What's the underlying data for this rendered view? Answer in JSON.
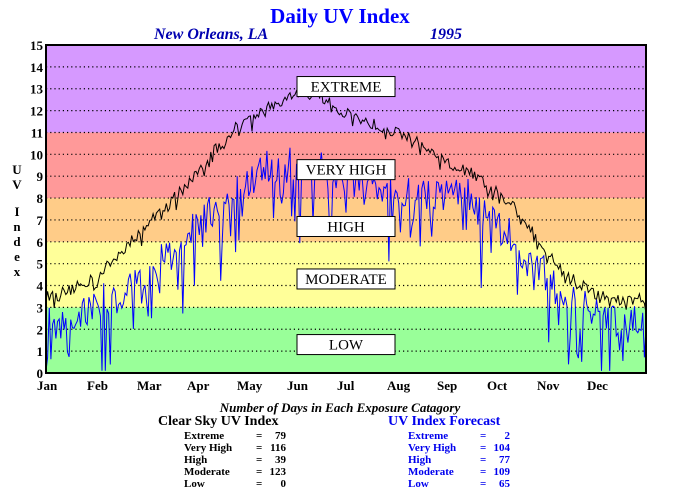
{
  "chart_data": {
    "type": "line",
    "title": "Daily UV Index",
    "location": "New Orleans, LA",
    "year": "1995",
    "ylabel": "UV Index",
    "ylim": [
      0,
      15
    ],
    "yticks": [
      "0",
      "1",
      "2",
      "3",
      "4",
      "5",
      "6",
      "7",
      "8",
      "9",
      "10",
      "11",
      "12",
      "13",
      "14",
      "15"
    ],
    "months": [
      "Jan",
      "Feb",
      "Mar",
      "Apr",
      "May",
      "Jun",
      "Jul",
      "Aug",
      "Sep",
      "Oct",
      "Nov",
      "Dec"
    ],
    "xlim": [
      1,
      365
    ],
    "grid": true,
    "zones": [
      {
        "name": "LOW",
        "from": 0,
        "to": 3,
        "color": "#99ff99"
      },
      {
        "name": "MODERATE",
        "from": 3,
        "to": 6,
        "color": "#ffff99"
      },
      {
        "name": "HIGH",
        "from": 6,
        "to": 8,
        "color": "#ffcc88"
      },
      {
        "name": "VERY HIGH",
        "from": 8,
        "to": 11,
        "color": "#ff9999"
      },
      {
        "name": "EXTREME",
        "from": 11,
        "to": 15,
        "color": "#d699ff"
      }
    ],
    "series": [
      {
        "name": "Clear Sky UV Index",
        "color": "#000000",
        "x": [
          1,
          16,
          32,
          46,
          60,
          74,
          91,
          105,
          121,
          135,
          152,
          166,
          182,
          196,
          213,
          227,
          244,
          258,
          274,
          288,
          305,
          319,
          335,
          349,
          365
        ],
        "y": [
          3.5,
          3.8,
          4.4,
          5.5,
          6.6,
          7.7,
          9.0,
          10.4,
          11.6,
          12.1,
          12.7,
          12.9,
          11.9,
          11.5,
          11.0,
          10.6,
          9.6,
          9.2,
          8.3,
          7.4,
          5.6,
          4.4,
          3.6,
          3.3,
          3.4
        ]
      },
      {
        "name": "UV Index Forecast",
        "color": "#0000ff",
        "x": [
          1,
          16,
          32,
          46,
          60,
          74,
          91,
          105,
          121,
          135,
          152,
          166,
          182,
          196,
          213,
          227,
          244,
          258,
          274,
          288,
          305,
          319,
          335,
          349,
          365
        ],
        "y": [
          2.3,
          2.5,
          3.2,
          3.8,
          4.5,
          5.4,
          6.6,
          7.6,
          8.6,
          9.5,
          9.6,
          9.4,
          8.9,
          8.6,
          8.3,
          8.0,
          8.4,
          8.2,
          6.8,
          6.0,
          4.4,
          3.5,
          2.6,
          2.4,
          2.4
        ]
      }
    ]
  },
  "counts": {
    "title": "Number of Days in Each Exposure Catagory",
    "clear": {
      "heading": "Clear Sky UV Index",
      "rows": [
        {
          "label": "Extreme",
          "value": "79"
        },
        {
          "label": "Very High",
          "value": "116"
        },
        {
          "label": "High",
          "value": "39"
        },
        {
          "label": "Moderate",
          "value": "123"
        },
        {
          "label": "Low",
          "value": "0"
        }
      ]
    },
    "forecast": {
      "heading": "UV Index Forecast",
      "rows": [
        {
          "label": "Extreme",
          "value": "2"
        },
        {
          "label": "Very High",
          "value": "104"
        },
        {
          "label": "High",
          "value": "77"
        },
        {
          "label": "Moderate",
          "value": "109"
        },
        {
          "label": "Low",
          "value": "65"
        }
      ]
    }
  }
}
